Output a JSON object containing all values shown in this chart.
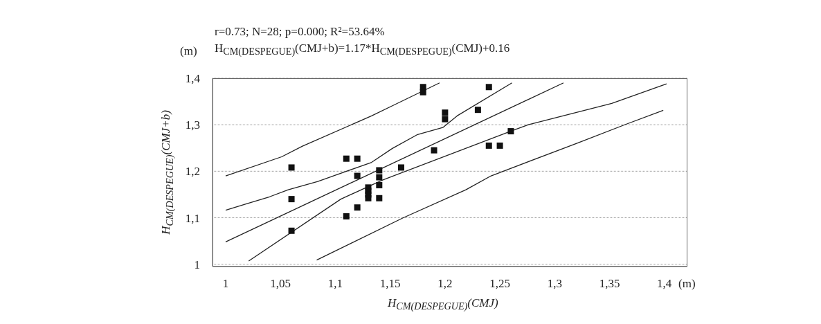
{
  "chart_data": {
    "type": "scatter",
    "title": "r=0.73; N=28; p=0.000; R²=53.64%",
    "subtitle": "H$_{CM(DESPEGUE)}$(CMJ+b)=1.17*H$_{CM(DESPEGUE)}$(CMJ)+0.16",
    "xlabel": "H$_{CM(DESPEGUE)}$(CMJ)",
    "ylabel": "H$_{CM(DESPEGUE)}$(CMJ+b)",
    "annotations": [
      "(m)",
      "(m)"
    ],
    "xlim": [
      0.988,
      1.421
    ],
    "ylim": [
      0.995,
      1.4
    ],
    "xticks": [
      {
        "value": 1,
        "label": "1"
      },
      {
        "value": 1.05,
        "label": "1,05"
      },
      {
        "value": 1.1,
        "label": "1,1"
      },
      {
        "value": 1.15,
        "label": "1,15"
      },
      {
        "value": 1.2,
        "label": "1,2"
      },
      {
        "value": 1.25,
        "label": "1,25"
      },
      {
        "value": 1.3,
        "label": "1,3"
      },
      {
        "value": 1.35,
        "label": "1,35"
      },
      {
        "value": 1.4,
        "label": "1,4"
      }
    ],
    "yticks": [
      {
        "value": 1,
        "label": "1"
      },
      {
        "value": 1.1,
        "label": "1,1"
      },
      {
        "value": 1.2,
        "label": "1,2"
      },
      {
        "value": 1.3,
        "label": "1,3"
      },
      {
        "value": 1.4,
        "label": "1,4"
      }
    ],
    "grid": "y",
    "legend": false,
    "series": [
      {
        "marker": "square",
        "color": "#111111",
        "x": [
          1.06,
          1.06,
          1.06,
          1.11,
          1.12,
          1.12,
          1.11,
          1.12,
          1.13,
          1.13,
          1.13,
          1.13,
          1.14,
          1.14,
          1.14,
          1.14,
          1.16,
          1.18,
          1.18,
          1.19,
          1.2,
          1.2,
          1.23,
          1.24,
          1.24,
          1.25,
          1.26
        ],
        "values": [
          1.208,
          1.14,
          1.072,
          1.227,
          1.227,
          1.19,
          1.103,
          1.122,
          1.165,
          1.158,
          1.15,
          1.142,
          1.202,
          1.187,
          1.17,
          1.142,
          1.208,
          1.381,
          1.37,
          1.245,
          1.326,
          1.312,
          1.332,
          1.381,
          1.255,
          1.255,
          1.286
        ]
      },
      {
        "type": "line",
        "color": "#222222",
        "x": [
          1.0,
          1.051,
          1.07,
          1.133,
          1.154,
          1.195
        ],
        "values": [
          1.19,
          1.231,
          1.254,
          1.319,
          1.343,
          1.39
        ]
      },
      {
        "type": "line",
        "color": "#222222",
        "x": [
          1.0,
          1.019,
          1.04,
          1.057,
          1.084,
          1.133,
          1.152,
          1.175,
          1.198,
          1.211,
          1.261
        ],
        "values": [
          1.116,
          1.13,
          1.145,
          1.16,
          1.178,
          1.219,
          1.249,
          1.279,
          1.294,
          1.319,
          1.39
        ]
      },
      {
        "type": "line",
        "color": "#222222",
        "x": [
          1.0,
          1.308
        ],
        "values": [
          1.048,
          1.39
        ]
      },
      {
        "type": "line",
        "color": "#222222",
        "x": [
          1.021,
          1.105,
          1.143,
          1.261,
          1.276,
          1.352,
          1.402
        ],
        "values": [
          1.007,
          1.14,
          1.181,
          1.287,
          1.3,
          1.346,
          1.388
        ]
      },
      {
        "type": "line",
        "color": "#222222",
        "x": [
          1.083,
          1.162,
          1.219,
          1.242,
          1.32,
          1.365,
          1.399
        ],
        "values": [
          1.009,
          1.1,
          1.16,
          1.19,
          1.26,
          1.301,
          1.331
        ]
      }
    ]
  }
}
